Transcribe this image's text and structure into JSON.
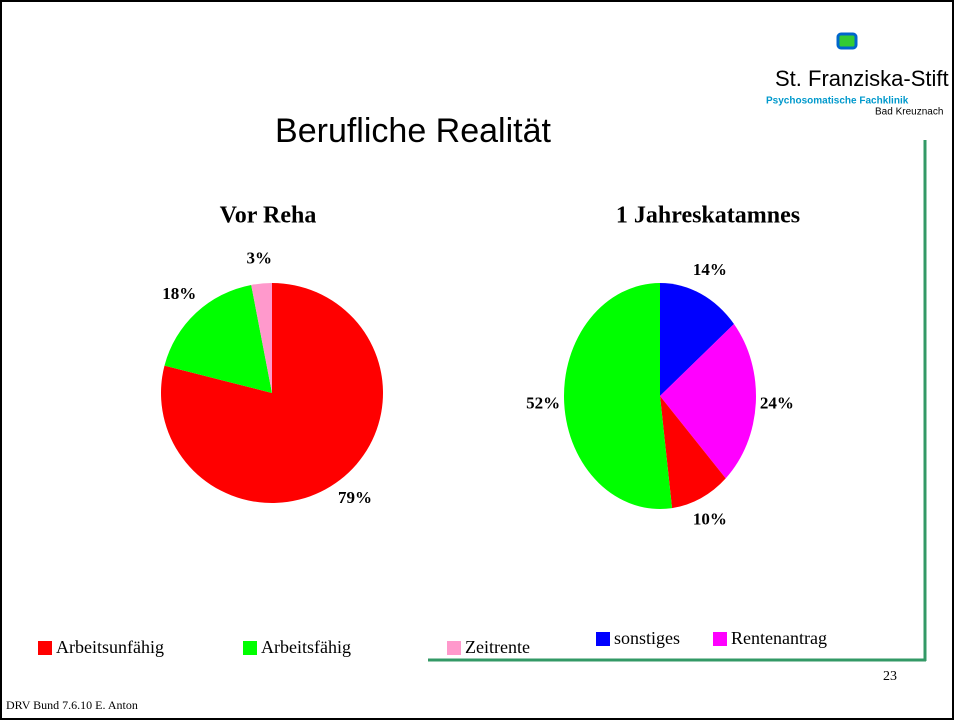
{
  "title": "Berufliche Realität",
  "logo": {
    "name": "St. Franziska-Stift",
    "subtitle": "Psychosomatische Fachklinik",
    "place": "Bad Kreuznach"
  },
  "legend": [
    {
      "name": "Arbeitsunfähig",
      "color": "#ff0000"
    },
    {
      "name": "Arbeitsfähig",
      "color": "#00ff00"
    },
    {
      "name": "Zeitrente",
      "color": "#ff99cc"
    },
    {
      "name": "sonstiges",
      "color": "#0000ff"
    },
    {
      "name": "Rentenantrag",
      "color": "#ff00ff"
    }
  ],
  "chart_data": [
    {
      "type": "pie",
      "title": "Vor Reha",
      "values": [
        79,
        18,
        3
      ],
      "value_labels": [
        "79%",
        "18%",
        "3%"
      ],
      "colors": [
        "#ff0000",
        "#00ff00",
        "#ff99cc"
      ]
    },
    {
      "type": "pie",
      "title": "1 Jahreskatamnes",
      "values": [
        14,
        24,
        10,
        52
      ],
      "value_labels": [
        "14%",
        "24%",
        "10%",
        "52%"
      ],
      "colors": [
        "#0000ff",
        "#ff00ff",
        "#ff0000",
        "#00ff00"
      ]
    }
  ],
  "page_number": "23",
  "footer": "DRV Bund 7.6.10 E. Anton"
}
